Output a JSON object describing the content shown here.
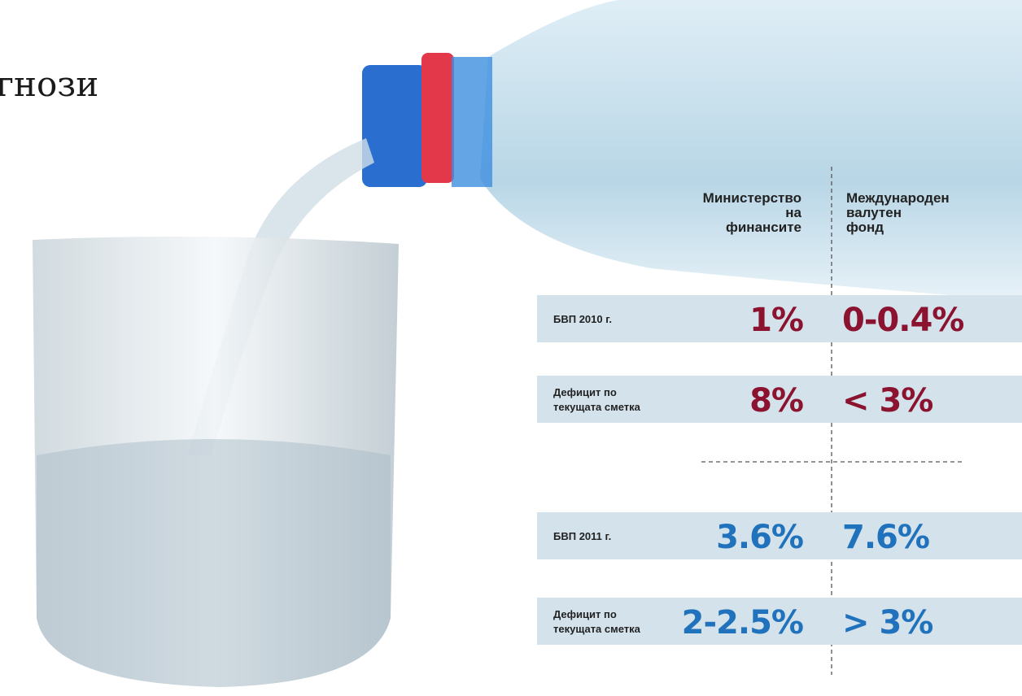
{
  "header": {
    "title": "гнози"
  },
  "table": {
    "columns": [
      [
        "Министерство",
        "на",
        "финансите"
      ],
      [
        "Международен",
        "валутен",
        "фонд"
      ]
    ],
    "groups": [
      {
        "color": "#8c1330",
        "rows": [
          {
            "label": [
              "БВП 2010 г."
            ],
            "values": [
              "1%",
              "0-0.4%"
            ]
          },
          {
            "label": [
              "Дефицит по",
              "текущата сметка"
            ],
            "values": [
              "8%",
              "< 3%"
            ]
          }
        ]
      },
      {
        "color": "#1f72bb",
        "rows": [
          {
            "label": [
              "БВП 2011 г."
            ],
            "values": [
              "3.6%",
              "7.6%"
            ]
          },
          {
            "label": [
              "Дефицит по",
              "текущата сметка"
            ],
            "values": [
              "2-2.5%",
              "> 3%"
            ]
          }
        ]
      }
    ]
  }
}
